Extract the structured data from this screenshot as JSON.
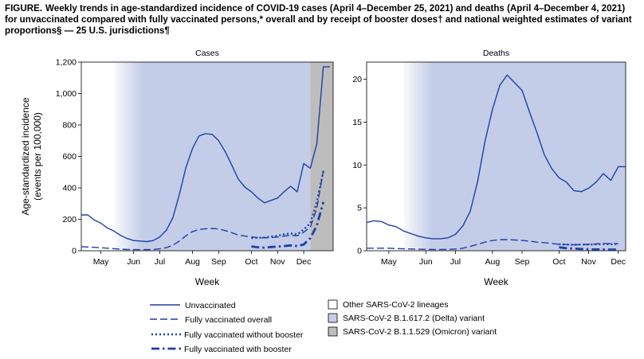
{
  "figure": {
    "label": "FIGURE.",
    "title": "Weekly trends in age-standardized incidence of COVID-19 cases (April 4–December 25, 2021) and deaths (April 4–December 4, 2021) for unvaccinated compared with fully vaccinated persons,* overall and by receipt of booster doses† and national weighted estimates of variant proportions§ — 25 U.S. jurisdictions¶"
  },
  "colors": {
    "line": "#1f3fa8",
    "other_lineages": "#ffffff",
    "delta": "#c4cde8",
    "omicron": "#bdbdbd"
  },
  "legend": {
    "lines": [
      {
        "label": "Unvaccinated",
        "style": "solid"
      },
      {
        "label": "Fully vaccinated overall",
        "style": "dashed"
      },
      {
        "label": "Fully vaccinated without booster",
        "style": "dotted"
      },
      {
        "label": "Fully vaccinated with booster",
        "style": "dashdot"
      }
    ],
    "variants": [
      {
        "label": "Other SARS-CoV-2 lineages",
        "color": "#ffffff"
      },
      {
        "label": "SARS-CoV-2 B.1.617.2 (Delta) variant",
        "color": "#c4cde8"
      },
      {
        "label": "SARS-CoV-2 B.1.1.529 (Omicron) variant",
        "color": "#bdbdbd"
      }
    ]
  },
  "chart_data": [
    {
      "type": "line",
      "title": "Cases",
      "xlabel": "Week",
      "ylabel": "Age-standardized incidence (events per 100,000)",
      "ylim": [
        0,
        1200
      ],
      "yticks": [
        0,
        200,
        400,
        600,
        800,
        "1,000",
        "1,200"
      ],
      "xticks": [
        {
          "label": "May",
          "week": 3
        },
        {
          "label": "Jun",
          "week": 8
        },
        {
          "label": "Jul",
          "week": 12
        },
        {
          "label": "Aug",
          "week": 17
        },
        {
          "label": "Sep",
          "week": 21
        },
        {
          "label": "Oct",
          "week": 26
        },
        {
          "label": "Nov",
          "week": 30
        },
        {
          "label": "Dec",
          "week": 34
        }
      ],
      "xlim": [
        0,
        38.5
      ],
      "variant_bands": [
        {
          "variant": "Other SARS-CoV-2 lineages",
          "start": 0,
          "end": 5
        },
        {
          "variant": "SARS-CoV-2 B.1.617.2 (Delta) variant",
          "start": 5,
          "end": 35
        },
        {
          "variant": "SARS-CoV-2 B.1.1.529 (Omicron) variant",
          "start": 35,
          "end": 38.5
        }
      ],
      "series": [
        {
          "name": "Unvaccinated",
          "style": "solid",
          "x": [
            0,
            1,
            2,
            3,
            4,
            5,
            6,
            7,
            8,
            9,
            10,
            11,
            12,
            13,
            14,
            15,
            16,
            17,
            18,
            19,
            20,
            21,
            22,
            23,
            24,
            25,
            26,
            27,
            28,
            29,
            30,
            31,
            32,
            33,
            34,
            35,
            36,
            37,
            38
          ],
          "y": [
            228,
            228,
            195,
            175,
            145,
            125,
            98,
            78,
            65,
            62,
            58,
            65,
            88,
            130,
            210,
            360,
            530,
            650,
            730,
            745,
            740,
            700,
            630,
            545,
            455,
            405,
            375,
            335,
            305,
            320,
            335,
            375,
            410,
            375,
            555,
            525,
            680,
            1170,
            1170
          ]
        },
        {
          "name": "Fully vaccinated overall",
          "style": "dashed",
          "x": [
            0,
            1,
            2,
            3,
            4,
            5,
            6,
            7,
            8,
            9,
            10,
            11,
            12,
            13,
            14,
            15,
            16,
            17,
            18,
            19,
            20,
            21,
            22,
            23,
            24,
            25,
            26,
            27,
            28,
            29,
            30,
            31,
            32,
            33,
            34,
            35,
            36,
            37
          ],
          "y": [
            26,
            24,
            22,
            19,
            16,
            13,
            10,
            8,
            7,
            7,
            7,
            8,
            12,
            20,
            35,
            62,
            95,
            122,
            135,
            140,
            142,
            138,
            128,
            115,
            100,
            93,
            88,
            84,
            82,
            84,
            87,
            93,
            98,
            95,
            118,
            150,
            270,
            510
          ]
        },
        {
          "name": "Fully vaccinated without booster",
          "style": "dotted",
          "x": [
            26,
            27,
            28,
            29,
            30,
            31,
            32,
            33,
            34,
            35,
            36,
            37
          ],
          "y": [
            80,
            82,
            85,
            90,
            95,
            105,
            110,
            105,
            135,
            175,
            310,
            505
          ]
        },
        {
          "name": "Fully vaccinated with booster",
          "style": "dashdot",
          "x": [
            26,
            27,
            28,
            29,
            30,
            31,
            32,
            33,
            34,
            35,
            36,
            37
          ],
          "y": [
            28,
            22,
            20,
            24,
            26,
            30,
            34,
            30,
            40,
            80,
            160,
            310
          ]
        }
      ]
    },
    {
      "type": "line",
      "title": "Deaths",
      "xlabel": "Week",
      "ylabel": "",
      "ylim": [
        0,
        22
      ],
      "yticks": [
        0,
        5,
        10,
        15,
        20
      ],
      "xticks": [
        {
          "label": "May",
          "week": 3
        },
        {
          "label": "Jun",
          "week": 8
        },
        {
          "label": "Jul",
          "week": 12
        },
        {
          "label": "Aug",
          "week": 17
        },
        {
          "label": "Sep",
          "week": 21
        },
        {
          "label": "Oct",
          "week": 26
        },
        {
          "label": "Nov",
          "week": 30
        },
        {
          "label": "Dec",
          "week": 34
        }
      ],
      "xlim": [
        0,
        35
      ],
      "variant_bands": [
        {
          "variant": "Other SARS-CoV-2 lineages",
          "start": 0,
          "end": 5
        },
        {
          "variant": "SARS-CoV-2 B.1.617.2 (Delta) variant",
          "start": 5,
          "end": 35
        }
      ],
      "series": [
        {
          "name": "Unvaccinated",
          "style": "solid",
          "x": [
            0,
            1,
            2,
            3,
            4,
            5,
            6,
            7,
            8,
            9,
            10,
            11,
            12,
            13,
            14,
            15,
            16,
            17,
            18,
            19,
            20,
            21,
            22,
            23,
            24,
            25,
            26,
            27,
            28,
            29,
            30,
            31,
            32,
            33,
            34,
            35
          ],
          "y": [
            3.3,
            3.5,
            3.4,
            3.0,
            2.8,
            2.3,
            2.0,
            1.7,
            1.5,
            1.4,
            1.4,
            1.5,
            1.9,
            2.9,
            4.6,
            8.1,
            12.8,
            16.5,
            19.3,
            20.5,
            19.6,
            18.7,
            16.2,
            13.8,
            11.2,
            9.6,
            8.5,
            8.0,
            7.0,
            6.9,
            7.3,
            8.0,
            9.0,
            8.2,
            9.8,
            9.8
          ]
        },
        {
          "name": "Fully vaccinated overall",
          "style": "dashed",
          "x": [
            0,
            1,
            2,
            3,
            4,
            5,
            6,
            7,
            8,
            9,
            10,
            11,
            12,
            13,
            14,
            15,
            16,
            17,
            18,
            19,
            20,
            21,
            22,
            23,
            24,
            25,
            26,
            27,
            28,
            29,
            30,
            31,
            32,
            33,
            34
          ],
          "y": [
            0.3,
            0.3,
            0.3,
            0.3,
            0.25,
            0.22,
            0.2,
            0.18,
            0.16,
            0.15,
            0.15,
            0.16,
            0.2,
            0.3,
            0.5,
            0.75,
            1.0,
            1.2,
            1.3,
            1.3,
            1.25,
            1.2,
            1.12,
            1.0,
            0.95,
            0.85,
            0.75,
            0.72,
            0.7,
            0.72,
            0.75,
            0.8,
            0.85,
            0.82,
            0.85
          ]
        },
        {
          "name": "Fully vaccinated without booster",
          "style": "dotted",
          "x": [
            26,
            27,
            28,
            29,
            30,
            31,
            32,
            33,
            34
          ],
          "y": [
            0.75,
            0.72,
            0.7,
            0.72,
            0.72,
            0.75,
            0.78,
            0.75,
            0.8
          ]
        },
        {
          "name": "Fully vaccinated with booster",
          "style": "dashdot",
          "x": [
            26,
            27,
            28,
            29,
            30,
            31,
            32,
            33,
            34
          ],
          "y": [
            0.4,
            0.3,
            0.25,
            0.2,
            0.18,
            0.15,
            0.15,
            0.12,
            0.15
          ]
        }
      ]
    }
  ]
}
